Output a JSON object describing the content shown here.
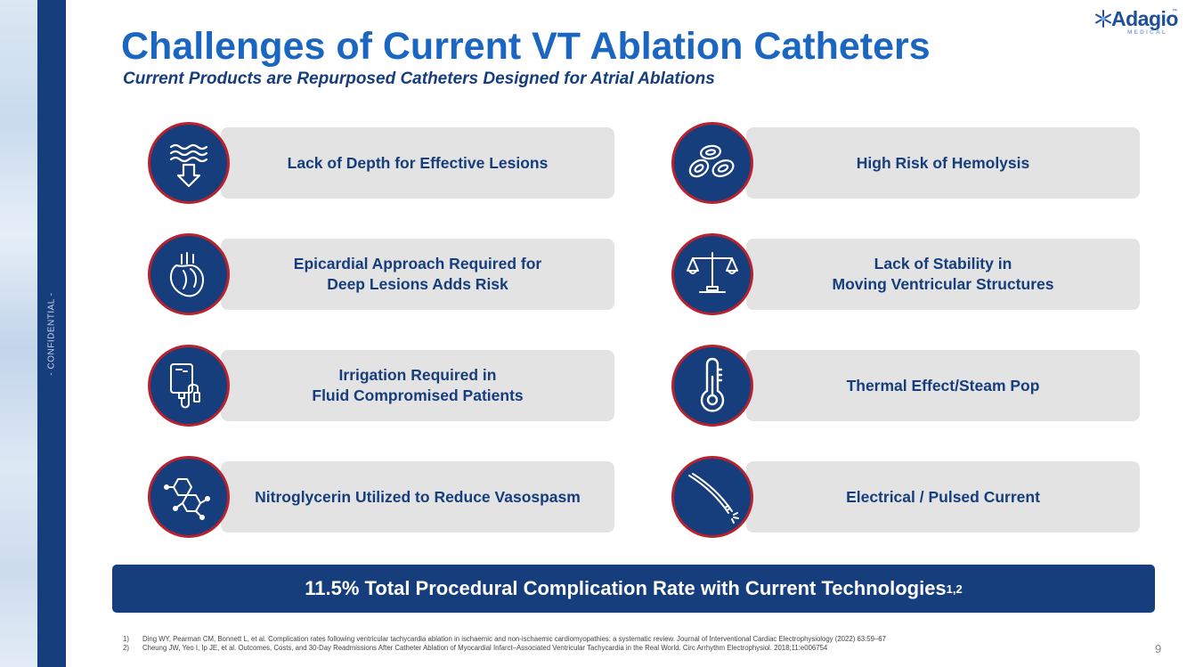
{
  "sidebar": {
    "confidential": "- CONFIDENTIAL -"
  },
  "logo": {
    "word": "Adagio",
    "tm": "™",
    "sub": "MEDICAL"
  },
  "title": "Challenges of Current VT Ablation Catheters",
  "subtitle": "Current Products are Repurposed Catheters Designed for Atrial Ablations",
  "items": [
    {
      "label": "Lack of Depth for Effective Lesions",
      "icon": "depth-waves-arrow-icon"
    },
    {
      "label": "High Risk of Hemolysis",
      "icon": "red-blood-cells-icon"
    },
    {
      "label": "Epicardial Approach Required for\nDeep Lesions Adds Risk",
      "icon": "heart-icon"
    },
    {
      "label": "Lack of Stability in\nMoving Ventricular Structures",
      "icon": "balance-scale-icon"
    },
    {
      "label": "Irrigation Required in\nFluid Compromised Patients",
      "icon": "iv-bag-icon"
    },
    {
      "label": "Thermal Effect/Steam Pop",
      "icon": "thermometer-icon"
    },
    {
      "label": "Nitroglycerin Utilized to Reduce Vasospasm",
      "icon": "molecule-icon"
    },
    {
      "label": "Electrical / Pulsed Current",
      "icon": "catheter-icon"
    }
  ],
  "banner": {
    "text": "11.5% Total Procedural Complication Rate with Current Technologies",
    "sup": "1,2"
  },
  "references": [
    {
      "num": "1)",
      "text": "Ding WY, Pearman CM, Bonnett L, et al. Complication rates following ventricular tachycardia ablation in ischaemic and non-ischaemic cardiomyopathies: a systematic review. Journal of Interventional Cardiac Electrophysiology (2022) 63:59–67"
    },
    {
      "num": "2)",
      "text": "Cheung JW, Yeo I, Ip JE, et al. Outcomes, Costs, and 30-Day Readmissions After Catheter Ablation of Myocardial Infarct–Associated Ventricular Tachycardia in the Real World. Circ Arrhythm Electrophysiol. 2018;11:e006754"
    }
  ],
  "page_number": "9",
  "colors": {
    "navy": "#163d7c",
    "title_blue": "#1a66c0",
    "ring_red": "#b8222e",
    "card_gray": "#e3e3e3"
  }
}
